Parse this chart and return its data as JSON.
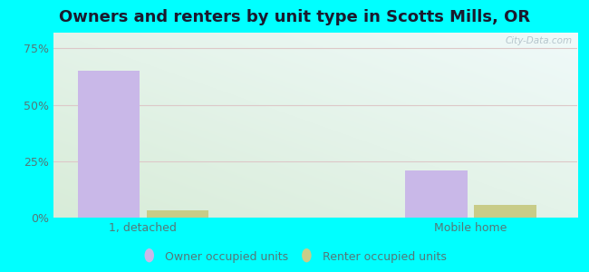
{
  "title": "Owners and renters by unit type in Scotts Mills, OR",
  "categories": [
    "1, detached",
    "Mobile home"
  ],
  "owner_values": [
    65.0,
    21.0
  ],
  "renter_values": [
    3.2,
    5.5
  ],
  "owner_color": "#c9b8e8",
  "renter_color": "#c8cc88",
  "yticks": [
    0,
    25,
    50,
    75
  ],
  "ytick_labels": [
    "0%",
    "25%",
    "50%",
    "75%"
  ],
  "ylim": [
    0,
    82
  ],
  "bar_width": 0.38,
  "bg_colors": [
    "#d8ecd8",
    "#e8f8f4"
  ],
  "grid_color": "#ddc8c8",
  "outer_bg": "#00ffff",
  "watermark": "City-Data.com",
  "title_fontsize": 13,
  "legend_labels": [
    "Owner occupied units",
    "Renter occupied units"
  ],
  "tick_color": "#557777",
  "title_color": "#1a1a2e"
}
